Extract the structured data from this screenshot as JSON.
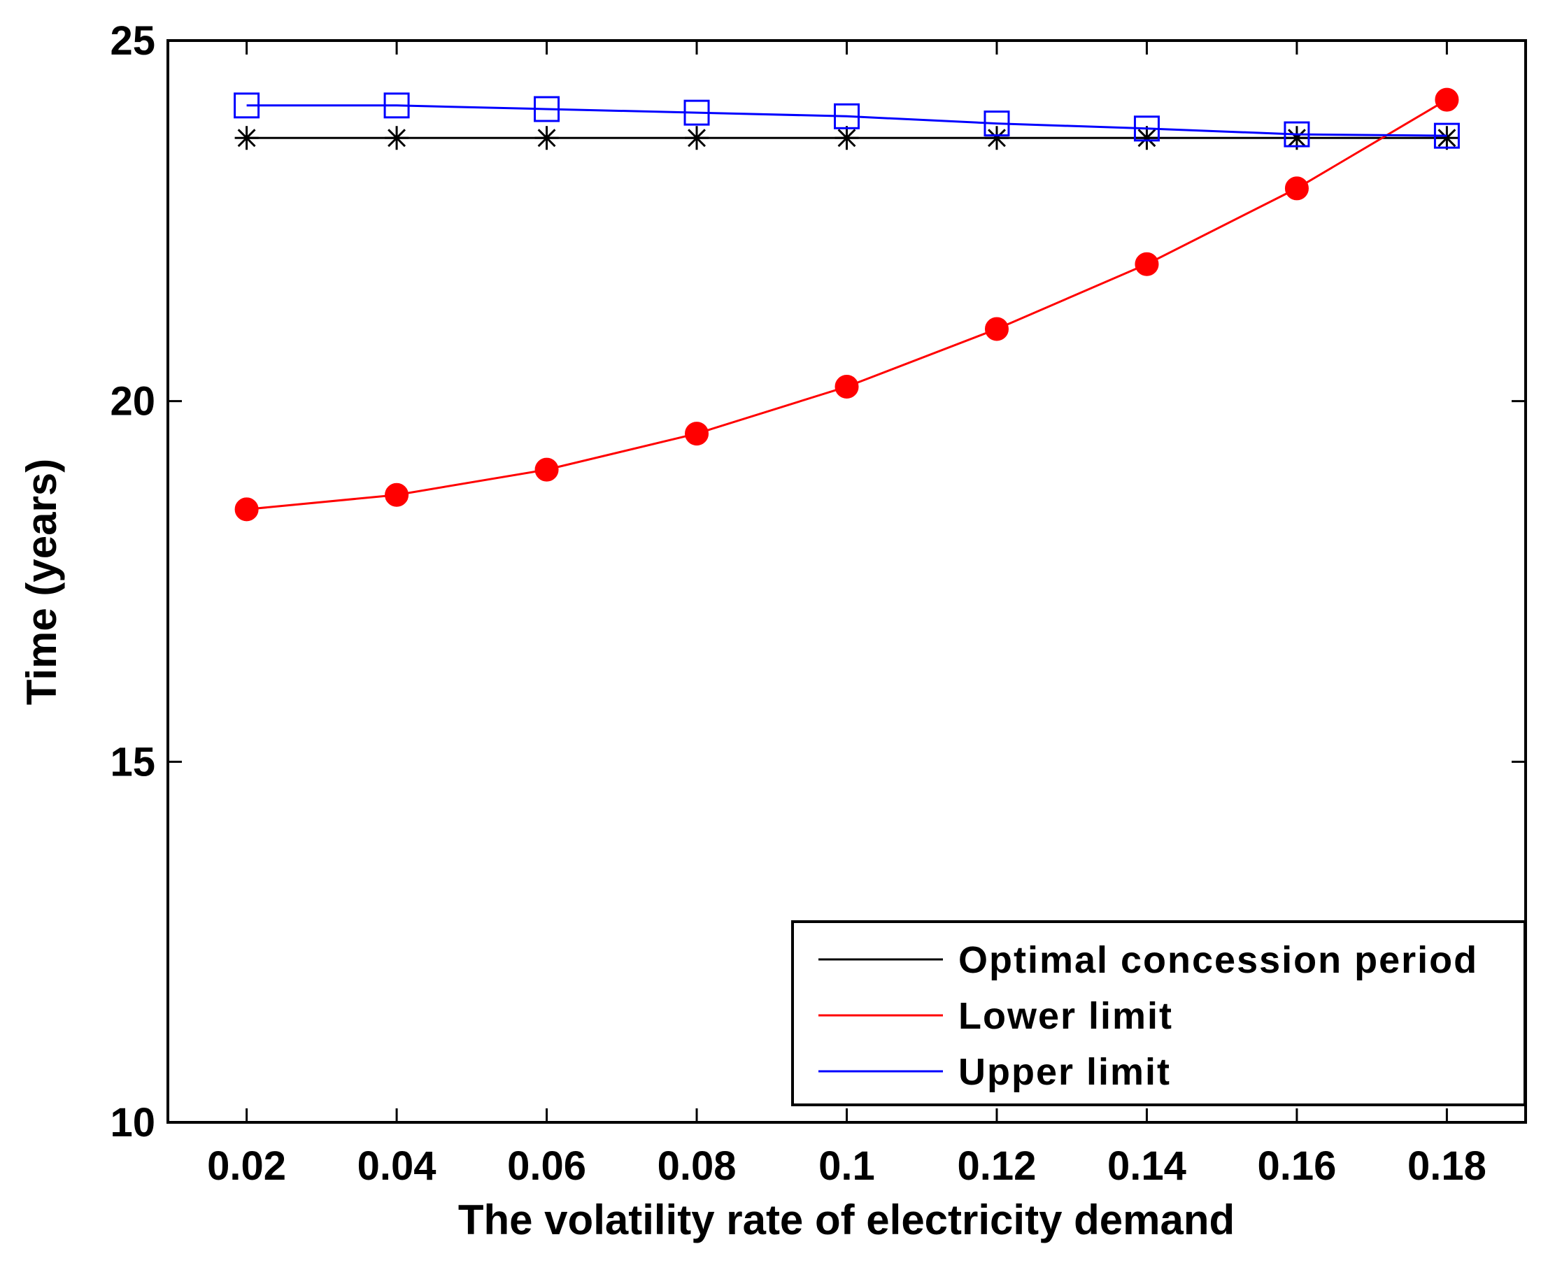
{
  "chart_data": {
    "type": "line",
    "title": "",
    "xlabel": "The volatility rate of electricity demand",
    "ylabel": "Time (years)",
    "x": [
      0.02,
      0.04,
      0.06,
      0.08,
      0.1,
      0.12,
      0.14,
      0.16,
      0.18
    ],
    "x_tick_labels": [
      "0.02",
      "0.04",
      "0.06",
      "0.08",
      "0.1",
      "0.12",
      "0.14",
      "0.16",
      "0.18"
    ],
    "xlim": [
      0.0095,
      0.1905
    ],
    "ylim": [
      10,
      25
    ],
    "y_ticks": [
      10,
      15,
      20,
      25
    ],
    "y_tick_labels": [
      "10",
      "15",
      "20",
      "25"
    ],
    "grid": false,
    "legend_position": "bottom-right",
    "series": [
      {
        "name": "Optimal concession period",
        "color": "#000000",
        "marker": "asterisk",
        "values": [
          23.65,
          23.65,
          23.65,
          23.65,
          23.65,
          23.65,
          23.65,
          23.65,
          23.65
        ]
      },
      {
        "name": "Lower limit",
        "color": "#ff0000",
        "marker": "filled-circle",
        "values": [
          18.5,
          18.7,
          19.05,
          19.55,
          20.2,
          21.0,
          21.9,
          22.95,
          24.18
        ]
      },
      {
        "name": "Upper limit",
        "color": "#0000ff",
        "marker": "open-square",
        "values": [
          24.1,
          24.1,
          24.05,
          24.0,
          23.95,
          23.85,
          23.78,
          23.7,
          23.68
        ]
      }
    ]
  }
}
